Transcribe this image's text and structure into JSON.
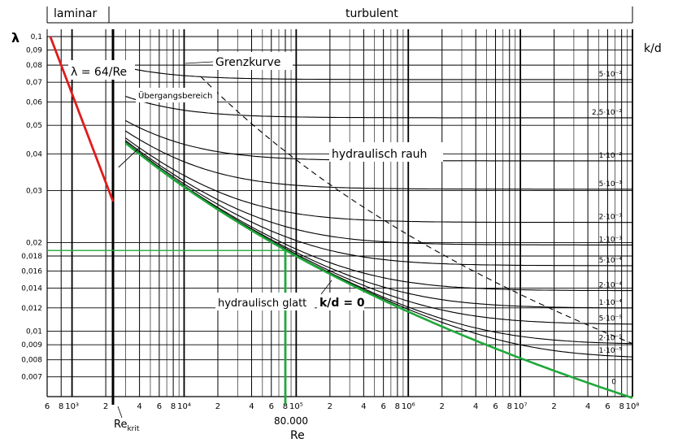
{
  "chart_data": {
    "type": "line",
    "title": "",
    "xlabel": "Re",
    "ylabel": "λ",
    "y2label": "k/d",
    "x_scale": "log",
    "y_scale": "log",
    "xlim": [
      600,
      100000000
    ],
    "ylim": [
      0.006,
      0.1
    ],
    "grid": true,
    "regions": {
      "laminar": "laminar",
      "turbulent": "turbulent"
    },
    "x_ticks": [
      {
        "v": 600,
        "l": "6"
      },
      {
        "v": 800,
        "l": "8"
      },
      {
        "v": 1000,
        "l": "10³"
      },
      {
        "v": 2000,
        "l": "2"
      },
      {
        "v": 4000,
        "l": "4"
      },
      {
        "v": 6000,
        "l": "6"
      },
      {
        "v": 8000,
        "l": "8"
      },
      {
        "v": 10000,
        "l": "10⁴"
      },
      {
        "v": 20000,
        "l": "2"
      },
      {
        "v": 40000,
        "l": "4"
      },
      {
        "v": 60000,
        "l": "6"
      },
      {
        "v": 80000,
        "l": "8"
      },
      {
        "v": 100000,
        "l": "10⁵"
      },
      {
        "v": 200000,
        "l": "2"
      },
      {
        "v": 400000,
        "l": "4"
      },
      {
        "v": 600000,
        "l": "6"
      },
      {
        "v": 800000,
        "l": "8"
      },
      {
        "v": 1000000,
        "l": "10⁶"
      },
      {
        "v": 2000000,
        "l": "2"
      },
      {
        "v": 4000000,
        "l": "4"
      },
      {
        "v": 6000000,
        "l": "6"
      },
      {
        "v": 8000000,
        "l": "8"
      },
      {
        "v": 10000000,
        "l": "10⁷"
      },
      {
        "v": 20000000,
        "l": "2"
      },
      {
        "v": 40000000,
        "l": "4"
      },
      {
        "v": 60000000,
        "l": "6"
      },
      {
        "v": 80000000,
        "l": "8"
      },
      {
        "v": 100000000,
        "l": "10⁸"
      }
    ],
    "y_ticks": [
      {
        "v": 0.1,
        "l": "0,1"
      },
      {
        "v": 0.09,
        "l": "0,09"
      },
      {
        "v": 0.08,
        "l": "0,08"
      },
      {
        "v": 0.07,
        "l": "0,07"
      },
      {
        "v": 0.06,
        "l": "0,06"
      },
      {
        "v": 0.05,
        "l": "0,05"
      },
      {
        "v": 0.04,
        "l": "0,04"
      },
      {
        "v": 0.03,
        "l": "0,03"
      },
      {
        "v": 0.02,
        "l": "0,02"
      },
      {
        "v": 0.018,
        "l": "0,018"
      },
      {
        "v": 0.016,
        "l": "0,016"
      },
      {
        "v": 0.014,
        "l": "0,014"
      },
      {
        "v": 0.012,
        "l": "0,012"
      },
      {
        "v": 0.01,
        "l": "0,01"
      },
      {
        "v": 0.009,
        "l": "0,009"
      },
      {
        "v": 0.008,
        "l": "0,008"
      },
      {
        "v": 0.007,
        "l": "0,007"
      }
    ],
    "re_krit": {
      "value": 2320,
      "label": "Re",
      "label_sub": "krit"
    },
    "marker": {
      "value": 80000,
      "label": "80.000",
      "lambda": 0.0188
    },
    "annotations": {
      "laminar_formula": "λ = 64/Re",
      "grenzkurve": "Grenzkurve",
      "uebergang": "Übergangsbereich",
      "rauh": "hydraulisch rauh",
      "glatt": "hydraulisch glatt",
      "smooth_kd": "k/d = 0"
    },
    "series": [
      {
        "label": "5·10⁻²",
        "kd": 0.05
      },
      {
        "label": "2,5·10⁻²",
        "kd": 0.025
      },
      {
        "label": "1·10⁻²",
        "kd": 0.01
      },
      {
        "label": "5·10⁻³",
        "kd": 0.005
      },
      {
        "label": "2·10⁻³",
        "kd": 0.002
      },
      {
        "label": "1·10⁻³",
        "kd": 0.001
      },
      {
        "label": "5·10⁻⁴",
        "kd": 0.0005
      },
      {
        "label": "2·10⁻⁴",
        "kd": 0.0002
      },
      {
        "label": "1·10⁻⁴",
        "kd": 0.0001
      },
      {
        "label": "5·10⁻⁵",
        "kd": 5e-05
      },
      {
        "label": "2·10⁻⁵",
        "kd": 2e-05
      },
      {
        "label": "1·10⁻⁵",
        "kd": 1e-05
      },
      {
        "label": "0",
        "kd": 0
      }
    ],
    "colors": {
      "laminar": "#e01b1b",
      "smooth": "#1fa83a",
      "marker": "#1fa83a",
      "grid": "#000000"
    }
  }
}
